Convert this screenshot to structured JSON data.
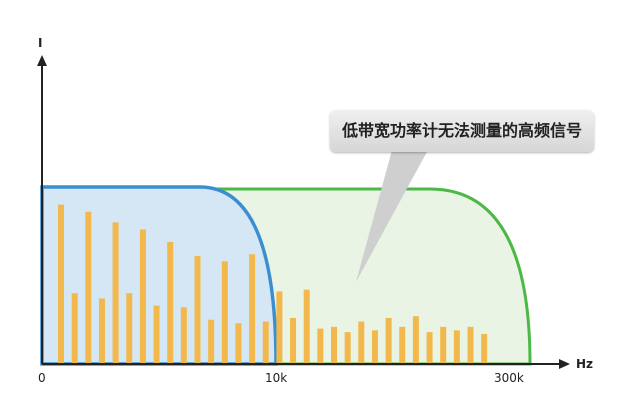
{
  "chart_data": {
    "type": "bar",
    "y_axis_label": "I",
    "x_axis_label": "Hz",
    "x_tick_labels": [
      "0",
      "10k",
      "300k"
    ],
    "annotation": "低带宽功率计无法测量的高频信号",
    "values": [
      90,
      40,
      86,
      37,
      80,
      40,
      76,
      33,
      69,
      32,
      61,
      25,
      58,
      23,
      62,
      24,
      41,
      26,
      42,
      20,
      21,
      18,
      24,
      19,
      26,
      21,
      27,
      18,
      21,
      19,
      21,
      17
    ],
    "bands": [
      {
        "cutoff": "10k",
        "color": "#3a8fd0",
        "fill": "#d5e6f5"
      },
      {
        "cutoff": "300k",
        "color": "#4cb847",
        "fill": "#eaf4e4"
      }
    ],
    "bar_color": "#f2b84b"
  }
}
